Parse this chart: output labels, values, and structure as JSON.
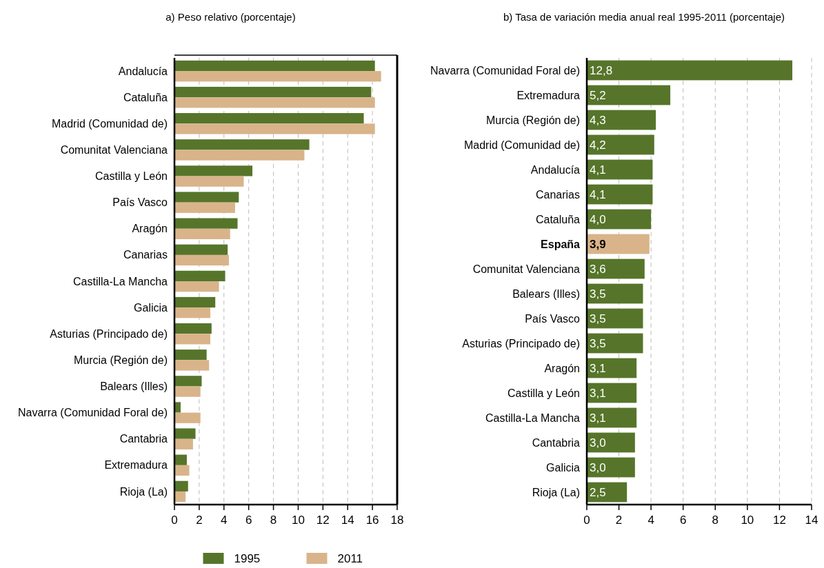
{
  "chart_data": [
    {
      "type": "bar",
      "orientation": "horizontal",
      "title": "a)  Peso relativo (porcentaje)",
      "categories": [
        "Andalucía",
        "Cataluña",
        "Madrid (Comunidad de)",
        "Comunitat Valenciana",
        "Castilla y León",
        "País Vasco",
        "Aragón",
        "Canarias",
        "Castilla-La Mancha",
        "Galicia",
        "Asturias (Principado de)",
        "Murcia (Región de)",
        "Balears (Illes)",
        "Navarra (Comunidad Foral de)",
        "Cantabria",
        "Extremadura",
        "Rioja (La)"
      ],
      "series": [
        {
          "name": "1995",
          "color": "#56752a",
          "values": [
            16.2,
            15.9,
            15.3,
            10.9,
            6.3,
            5.2,
            5.1,
            4.3,
            4.1,
            3.3,
            3.0,
            2.6,
            2.2,
            0.5,
            1.7,
            1.0,
            1.1
          ]
        },
        {
          "name": "2011",
          "color": "#d9b48a",
          "values": [
            16.7,
            16.2,
            16.2,
            10.5,
            5.6,
            4.9,
            4.5,
            4.4,
            3.6,
            2.9,
            2.9,
            2.8,
            2.1,
            2.1,
            1.5,
            1.2,
            0.9
          ]
        }
      ],
      "xlim": [
        0,
        18
      ],
      "xticks": [
        0,
        2,
        4,
        6,
        8,
        10,
        12,
        14,
        16,
        18
      ],
      "grid": "x",
      "legend": "bottom"
    },
    {
      "type": "bar",
      "orientation": "horizontal",
      "title": "b)  Tasa de  variación media anual real 1995-2011 (porcentaje)",
      "categories": [
        "Navarra (Comunidad Foral de)",
        "Extremadura",
        "Murcia (Región de)",
        "Madrid (Comunidad de)",
        "Andalucía",
        "Canarias",
        "Cataluña",
        "España",
        "Comunitat Valenciana",
        "Balears (Illes)",
        "País Vasco",
        "Asturias (Principado de)",
        "Aragón",
        "Castilla y León",
        "Castilla-La Mancha",
        "Cantabria",
        "Galicia",
        "Rioja (La)"
      ],
      "values": [
        12.8,
        5.2,
        4.3,
        4.2,
        4.1,
        4.1,
        4.0,
        3.9,
        3.6,
        3.5,
        3.5,
        3.5,
        3.1,
        3.1,
        3.1,
        3.0,
        3.0,
        2.5
      ],
      "colors": [
        "#56752a",
        "#56752a",
        "#56752a",
        "#56752a",
        "#56752a",
        "#56752a",
        "#56752a",
        "#d9b48a",
        "#56752a",
        "#56752a",
        "#56752a",
        "#56752a",
        "#56752a",
        "#56752a",
        "#56752a",
        "#56752a",
        "#56752a",
        "#56752a"
      ],
      "value_labels": [
        "12,8",
        "5,2",
        "4,3",
        "4,2",
        "4,1",
        "4,1",
        "4,0",
        "3,9",
        "3,6",
        "3,5",
        "3,5",
        "3,5",
        "3,1",
        "3,1",
        "3,1",
        "3,0",
        "3,0",
        "2,5"
      ],
      "xlim": [
        0,
        14
      ],
      "xticks": [
        0,
        2,
        4,
        6,
        8,
        10,
        12,
        14
      ],
      "grid": "x"
    }
  ]
}
